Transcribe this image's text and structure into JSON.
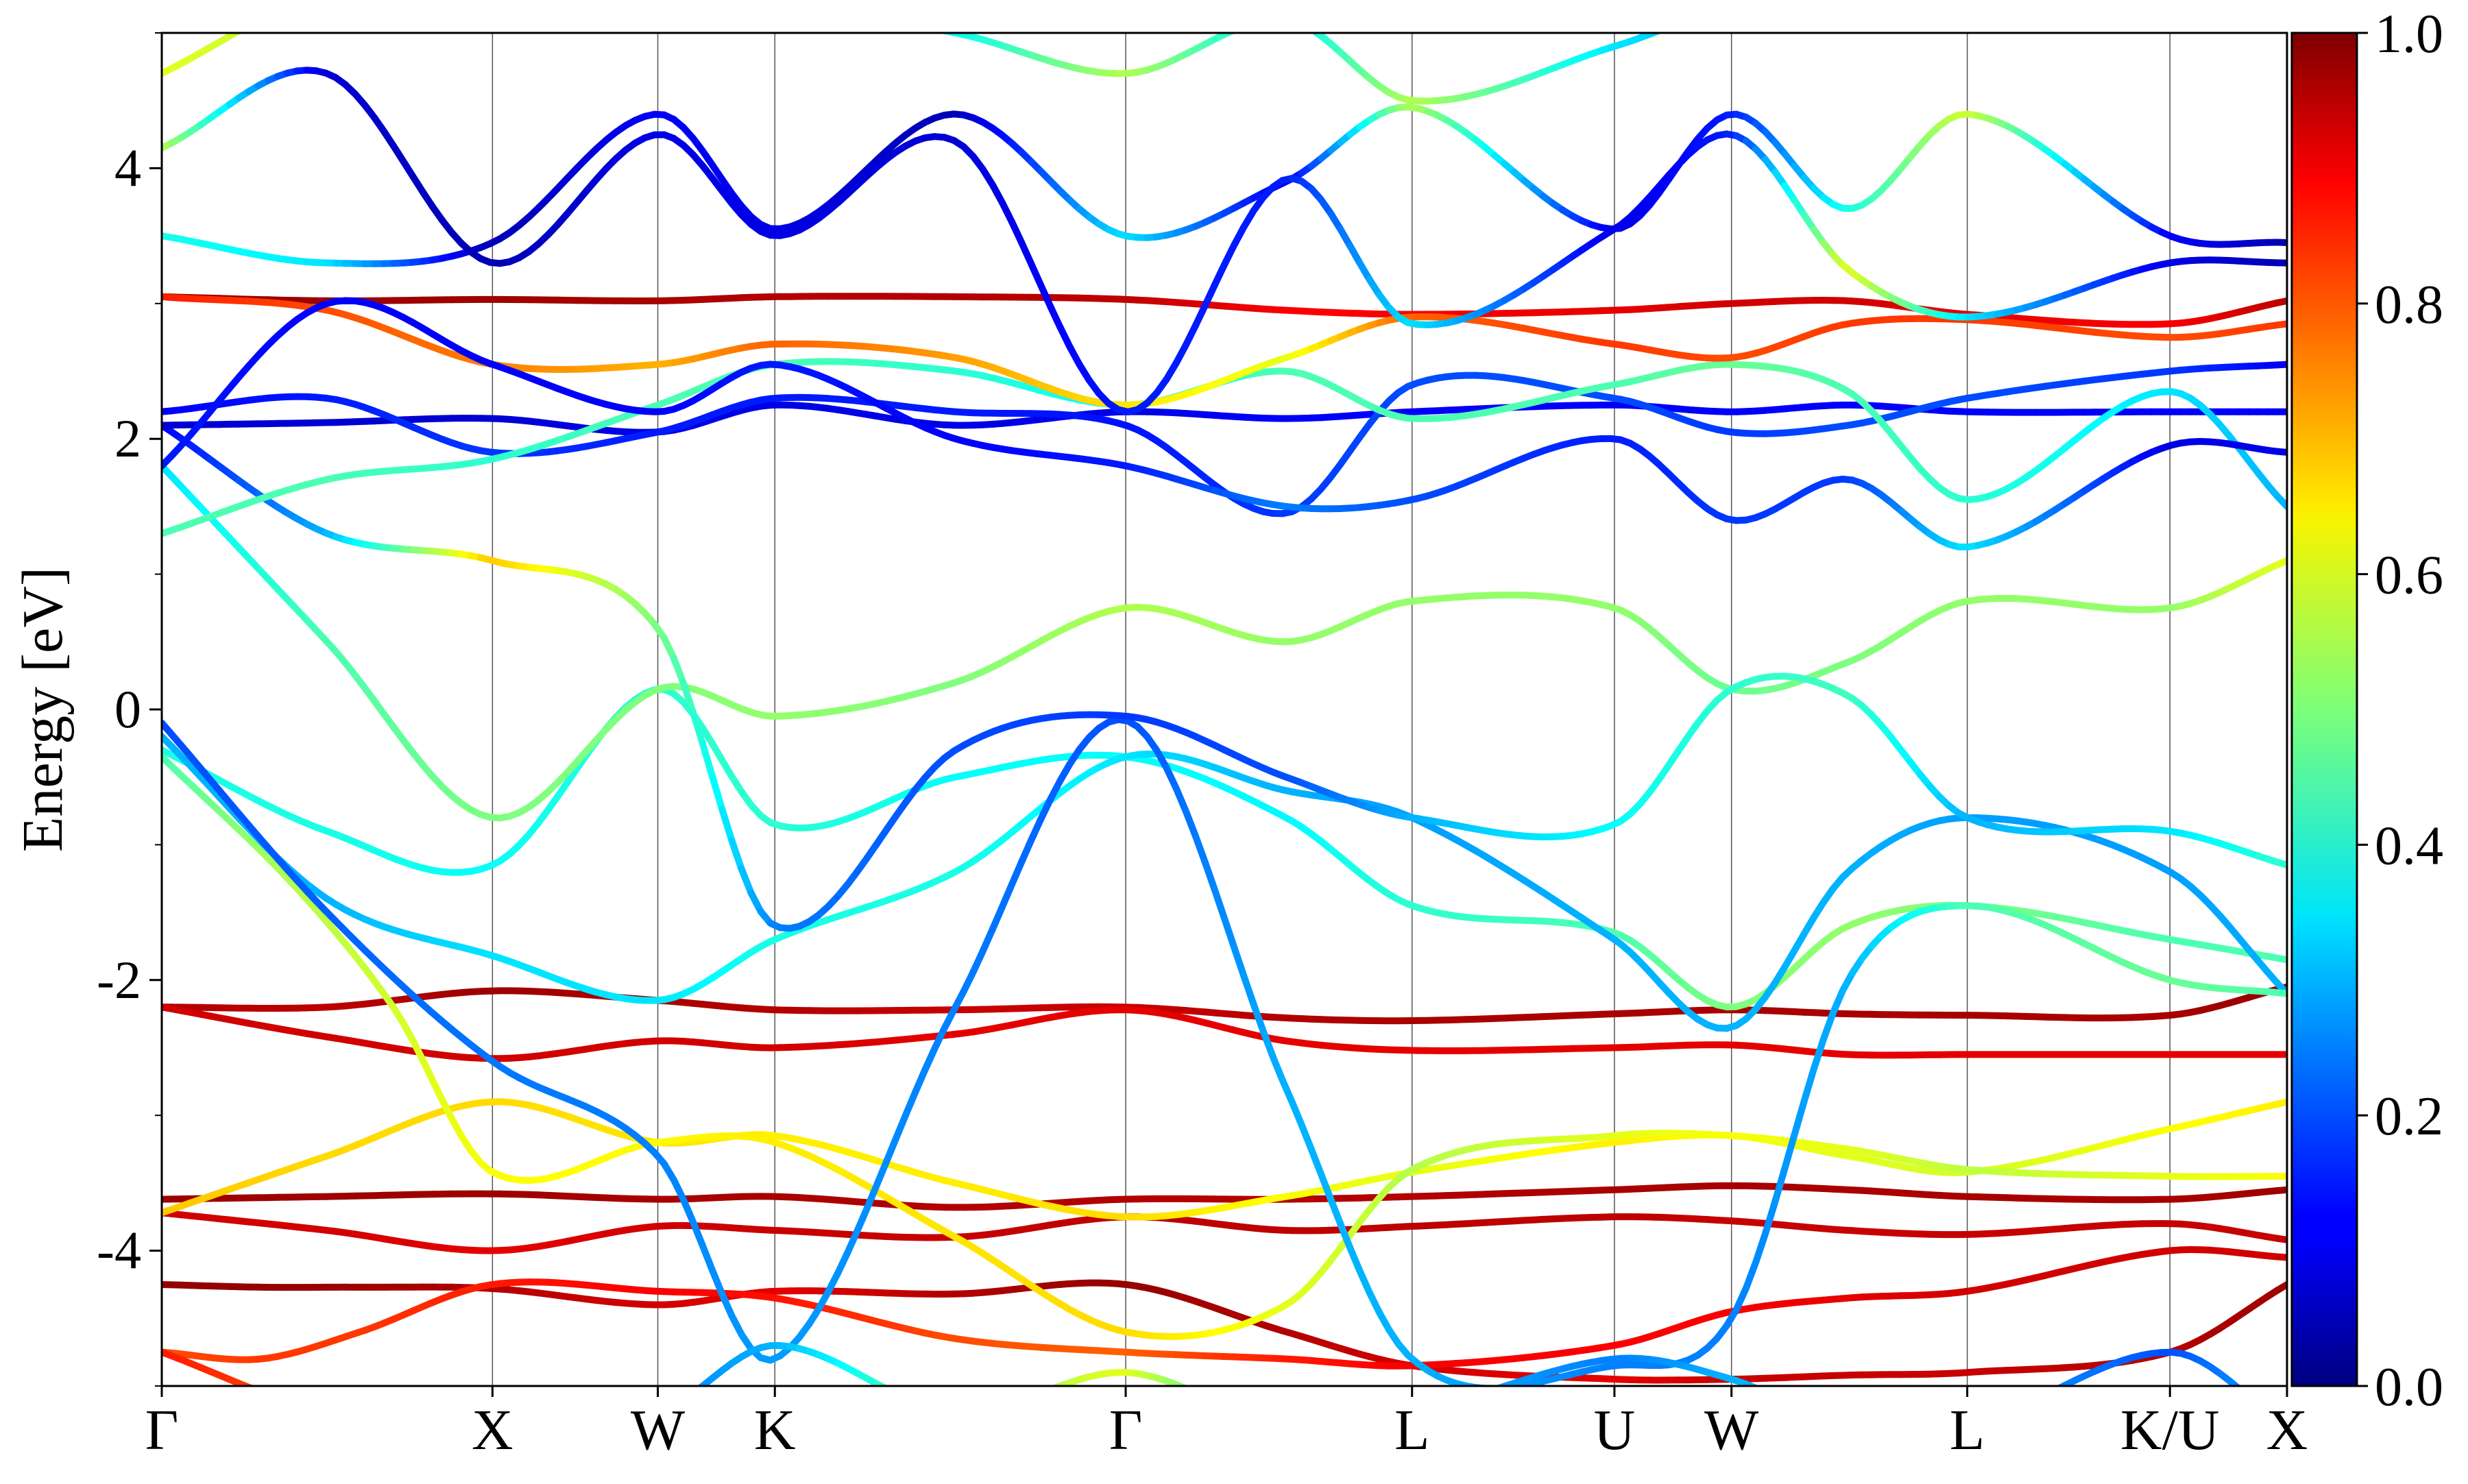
{
  "chart_data": {
    "type": "line",
    "title": "",
    "ylabel": "Energy [eV]",
    "xlabel": "",
    "ylim": [
      -5,
      5
    ],
    "yticks": [
      -4,
      -2,
      0,
      2,
      4
    ],
    "ytick_labels": [
      "-4",
      "-2",
      "0",
      "2",
      "4"
    ],
    "grid": false,
    "kpath": {
      "labels": [
        "Γ",
        "X",
        "W",
        "K",
        "Γ",
        "L",
        "U",
        "W",
        "L",
        "K/U",
        "X"
      ],
      "positions": [
        0,
        1.0,
        1.5,
        1.854,
        2.915,
        3.781,
        4.393,
        4.747,
        5.46,
        6.073,
        6.427
      ]
    },
    "colorbar": {
      "colormap": "jet",
      "range": [
        0.0,
        1.0
      ],
      "ticks": [
        0.0,
        0.2,
        0.4,
        0.6,
        0.8,
        1.0
      ],
      "tick_labels": [
        "0.0",
        "0.2",
        "0.4",
        "0.6",
        "0.8",
        "1.0"
      ]
    },
    "bands": [
      {
        "x": [
          0,
          0.3,
          0.6,
          1.0,
          1.5,
          1.854,
          2.4,
          2.915,
          3.4,
          3.781,
          4.393,
          4.747,
          5.1,
          5.46,
          6.073,
          6.427
        ],
        "y": [
          -4.25,
          -4.27,
          -4.27,
          -4.28,
          -4.4,
          -4.3,
          -4.32,
          -4.25,
          -4.6,
          -4.85,
          -4.95,
          -4.95,
          -4.92,
          -4.9,
          -4.75,
          -4.25
        ],
        "c": [
          0.98,
          0.98,
          0.97,
          0.95,
          0.92,
          0.9,
          0.95,
          0.98,
          0.95,
          0.92,
          0.9,
          0.93,
          0.93,
          0.93,
          0.95,
          0.97
        ]
      },
      {
        "x": [
          0,
          0.3,
          0.6,
          1.0,
          1.5,
          1.854,
          2.4,
          2.915,
          3.4,
          3.781,
          4.393,
          4.747,
          5.1,
          5.46,
          6.073,
          6.427
        ],
        "y": [
          -4.75,
          -4.8,
          -4.6,
          -4.25,
          -4.3,
          -4.35,
          -4.65,
          -4.75,
          -4.8,
          -4.85,
          -4.7,
          -4.45,
          -4.35,
          -4.3,
          -4.0,
          -4.05
        ],
        "c": [
          0.8,
          0.82,
          0.82,
          0.85,
          0.88,
          0.86,
          0.8,
          0.78,
          0.85,
          0.88,
          0.88,
          0.88,
          0.9,
          0.92,
          0.92,
          0.92
        ]
      },
      {
        "x": [
          0,
          0.5,
          1.0,
          1.5,
          1.854,
          2.4,
          2.915,
          3.4,
          3.781,
          4.393,
          4.747,
          5.1,
          5.46,
          6.073,
          6.427
        ],
        "y": [
          -3.62,
          -3.6,
          -3.58,
          -3.62,
          -3.6,
          -3.68,
          -3.62,
          -3.62,
          -3.6,
          -3.55,
          -3.52,
          -3.55,
          -3.6,
          -3.62,
          -3.55
        ],
        "c": [
          0.97,
          0.97,
          0.97,
          0.96,
          0.96,
          0.95,
          0.95,
          0.95,
          0.95,
          0.96,
          0.96,
          0.96,
          0.96,
          0.96,
          0.97
        ]
      },
      {
        "x": [
          0,
          0.5,
          1.0,
          1.5,
          1.854,
          2.4,
          2.915,
          3.4,
          3.781,
          4.393,
          4.747,
          5.1,
          5.46,
          6.073,
          6.427
        ],
        "y": [
          -3.72,
          -3.85,
          -4.0,
          -3.82,
          -3.85,
          -3.9,
          -3.75,
          -3.85,
          -3.82,
          -3.75,
          -3.78,
          -3.85,
          -3.88,
          -3.8,
          -3.92
        ],
        "c": [
          0.92,
          0.92,
          0.9,
          0.92,
          0.93,
          0.93,
          0.94,
          0.94,
          0.94,
          0.94,
          0.93,
          0.93,
          0.93,
          0.93,
          0.93
        ]
      },
      {
        "x": [
          0,
          0.5,
          1.0,
          1.5,
          1.854,
          2.4,
          2.915,
          3.4,
          3.781,
          4.393,
          4.747,
          5.1,
          5.46,
          6.073,
          6.427
        ],
        "y": [
          -3.72,
          -3.3,
          -2.9,
          -3.2,
          -3.15,
          -3.5,
          -3.75,
          -3.6,
          -3.42,
          -3.2,
          -3.15,
          -3.3,
          -3.42,
          -3.1,
          -2.9
        ],
        "c": [
          0.68,
          0.66,
          0.66,
          0.65,
          0.64,
          0.64,
          0.66,
          0.62,
          0.6,
          0.64,
          0.62,
          0.6,
          0.58,
          0.62,
          0.64
        ]
      },
      {
        "x": [
          0,
          0.5,
          1.0,
          1.5,
          1.854,
          2.4,
          2.915,
          3.4,
          3.781,
          4.393,
          4.747,
          5.1,
          5.46,
          6.073,
          6.427
        ],
        "y": [
          -2.2,
          -2.2,
          -2.08,
          -2.15,
          -2.22,
          -2.22,
          -2.2,
          -2.28,
          -2.3,
          -2.25,
          -2.22,
          -2.25,
          -2.26,
          -2.26,
          -2.05
        ],
        "c": [
          0.95,
          0.94,
          0.97,
          0.96,
          0.95,
          0.93,
          0.93,
          0.95,
          0.96,
          0.96,
          0.96,
          0.96,
          0.96,
          0.96,
          0.98
        ]
      },
      {
        "x": [
          0,
          0.5,
          1.0,
          1.5,
          1.854,
          2.4,
          2.915,
          3.4,
          3.781,
          4.393,
          4.747,
          5.1,
          5.46,
          6.073,
          6.427
        ],
        "y": [
          -2.2,
          -2.42,
          -2.58,
          -2.45,
          -2.5,
          -2.4,
          -2.22,
          -2.45,
          -2.52,
          -2.5,
          -2.48,
          -2.55,
          -2.55,
          -2.55,
          -2.55
        ],
        "c": [
          0.92,
          0.92,
          0.92,
          0.92,
          0.92,
          0.9,
          0.9,
          0.9,
          0.9,
          0.9,
          0.9,
          0.9,
          0.9,
          0.9,
          0.9
        ]
      },
      {
        "x": [
          0,
          0.4,
          0.7,
          1.0,
          1.5,
          1.854,
          2.4,
          2.915,
          3.4,
          3.781,
          4.393,
          4.747,
          5.1,
          5.46,
          6.073,
          6.427
        ],
        "y": [
          -0.35,
          -1.3,
          -2.2,
          -3.42,
          -3.2,
          -3.2,
          -3.9,
          -4.6,
          -4.4,
          -3.4,
          -3.15,
          -3.15,
          -3.25,
          -3.4,
          -3.45,
          -3.45
        ],
        "c": [
          0.45,
          0.55,
          0.58,
          0.62,
          0.63,
          0.64,
          0.65,
          0.66,
          0.6,
          0.55,
          0.6,
          0.62,
          0.6,
          0.56,
          0.6,
          0.62
        ]
      },
      {
        "x": [
          0,
          0.5,
          1.0,
          1.5,
          1.854,
          2.4,
          2.915,
          3.4,
          3.781,
          4.393,
          4.747,
          5.1,
          5.46,
          6.073,
          6.427
        ],
        "y": [
          -0.3,
          -0.9,
          -1.15,
          0.15,
          -0.85,
          -0.5,
          -0.35,
          -0.8,
          -1.45,
          -1.65,
          -2.2,
          -1.6,
          -1.45,
          -1.7,
          -1.85
        ],
        "c": [
          0.4,
          0.4,
          0.38,
          0.42,
          0.42,
          0.38,
          0.38,
          0.37,
          0.42,
          0.45,
          0.5,
          0.52,
          0.5,
          0.45,
          0.45
        ]
      },
      {
        "x": [
          0,
          0.5,
          1.0,
          1.5,
          1.854,
          2.4,
          2.915,
          3.4,
          3.781,
          4.393,
          4.747,
          5.1,
          5.46,
          6.073,
          6.427
        ],
        "y": [
          -0.2,
          -1.4,
          -1.82,
          -2.15,
          -1.7,
          -1.2,
          -0.35,
          -0.6,
          -0.8,
          -1.7,
          -2.35,
          -1.2,
          -0.8,
          -1.2,
          -2.1
        ],
        "c": [
          0.3,
          0.3,
          0.35,
          0.35,
          0.4,
          0.4,
          0.35,
          0.3,
          0.28,
          0.3,
          0.3,
          0.3,
          0.28,
          0.28,
          0.3
        ]
      },
      {
        "x": [
          0,
          0.5,
          1.0,
          1.5,
          1.854,
          2.4,
          2.915,
          3.4,
          3.781,
          4.393,
          4.747,
          5.1,
          5.46,
          6.073,
          6.427
        ],
        "y": [
          -0.1,
          -1.5,
          -2.6,
          -3.3,
          -4.8,
          -2.2,
          -0.08,
          -2.8,
          -4.8,
          -4.85,
          -4.5,
          -2.0,
          -1.45,
          -2.0,
          -2.1
        ],
        "c": [
          0.2,
          0.22,
          0.24,
          0.25,
          0.28,
          0.25,
          0.2,
          0.3,
          0.3,
          0.25,
          0.25,
          0.3,
          0.45,
          0.48,
          0.45
        ]
      },
      {
        "x": [
          0,
          0.5,
          1.0,
          1.5,
          1.854,
          2.4,
          2.915,
          3.4,
          3.781,
          4.393,
          4.747,
          5.1,
          5.46,
          6.073,
          6.427
        ],
        "y": [
          1.8,
          0.5,
          -0.8,
          0.15,
          -0.05,
          0.2,
          0.75,
          0.5,
          0.8,
          0.75,
          0.15,
          0.35,
          0.8,
          0.75,
          1.1
        ],
        "c": [
          0.35,
          0.45,
          0.5,
          0.5,
          0.52,
          0.5,
          0.55,
          0.52,
          0.52,
          0.52,
          0.48,
          0.5,
          0.52,
          0.52,
          0.6
        ]
      },
      {
        "x": [
          0,
          0.5,
          1.0,
          1.5,
          1.854,
          2.4,
          2.915,
          3.4,
          3.781,
          4.393,
          4.747,
          5.1,
          5.46,
          6.073,
          6.427
        ],
        "y": [
          2.1,
          1.3,
          1.1,
          0.6,
          -1.6,
          -0.3,
          -0.05,
          -0.5,
          -0.8,
          -0.85,
          0.15,
          0.1,
          -0.8,
          -0.9,
          -1.15
        ],
        "c": [
          0.12,
          0.3,
          0.68,
          0.5,
          0.25,
          0.2,
          0.18,
          0.2,
          0.3,
          0.38,
          0.42,
          0.44,
          0.3,
          0.35,
          0.42
        ]
      },
      {
        "x": [
          0,
          0.5,
          1.0,
          1.5,
          1.854,
          2.4,
          2.915,
          3.4,
          3.781,
          4.393,
          4.747,
          5.1,
          5.46,
          6.073,
          6.427
        ],
        "y": [
          2.1,
          2.12,
          2.15,
          2.05,
          2.25,
          2.1,
          2.2,
          2.15,
          2.2,
          2.25,
          2.2,
          2.25,
          2.2,
          2.2,
          2.2
        ],
        "c": [
          0.08,
          0.08,
          0.08,
          0.1,
          0.1,
          0.1,
          0.1,
          0.12,
          0.12,
          0.12,
          0.12,
          0.12,
          0.12,
          0.12,
          0.12
        ]
      },
      {
        "x": [
          0,
          0.5,
          1.0,
          1.5,
          1.854,
          2.4,
          2.915,
          3.4,
          3.781,
          4.393,
          4.747,
          5.1,
          5.46,
          6.073,
          6.427
        ],
        "y": [
          2.2,
          2.3,
          1.9,
          2.05,
          2.3,
          2.2,
          2.1,
          1.45,
          2.4,
          2.3,
          2.05,
          2.1,
          2.3,
          2.5,
          2.55
        ],
        "c": [
          0.12,
          0.15,
          0.18,
          0.15,
          0.15,
          0.15,
          0.14,
          0.18,
          0.2,
          0.2,
          0.18,
          0.2,
          0.2,
          0.18,
          0.12
        ]
      },
      {
        "x": [
          0,
          0.5,
          1.0,
          1.5,
          1.854,
          2.4,
          2.915,
          3.4,
          3.781,
          4.393,
          4.747,
          5.1,
          5.46,
          6.073,
          6.427
        ],
        "y": [
          1.3,
          1.7,
          1.85,
          2.25,
          2.55,
          2.5,
          2.25,
          2.5,
          2.15,
          2.4,
          2.55,
          2.35,
          1.55,
          2.35,
          1.5
        ],
        "c": [
          0.45,
          0.45,
          0.42,
          0.45,
          0.45,
          0.42,
          0.38,
          0.45,
          0.45,
          0.45,
          0.48,
          0.45,
          0.42,
          0.35,
          0.3
        ]
      },
      {
        "x": [
          0,
          0.5,
          1.0,
          1.5,
          1.854,
          2.4,
          2.915,
          3.4,
          3.781,
          4.393,
          4.747,
          5.1,
          5.46,
          6.073,
          6.427
        ],
        "y": [
          3.05,
          3.02,
          3.03,
          3.02,
          3.05,
          3.05,
          3.03,
          2.95,
          2.92,
          2.95,
          3.0,
          3.02,
          2.92,
          2.85,
          3.02
        ],
        "c": [
          0.98,
          0.97,
          0.97,
          0.96,
          0.95,
          0.95,
          0.94,
          0.88,
          0.88,
          0.9,
          0.92,
          0.92,
          0.9,
          0.88,
          0.94
        ]
      },
      {
        "x": [
          0,
          0.5,
          1.0,
          1.5,
          1.854,
          2.4,
          2.915,
          3.4,
          3.781,
          4.393,
          4.747,
          5.1,
          5.46,
          6.073,
          6.427
        ],
        "y": [
          3.05,
          2.95,
          2.55,
          2.55,
          2.7,
          2.6,
          2.25,
          2.6,
          2.9,
          2.7,
          2.6,
          2.85,
          2.88,
          2.75,
          2.85
        ],
        "c": [
          0.85,
          0.8,
          0.75,
          0.7,
          0.78,
          0.72,
          0.65,
          0.6,
          0.78,
          0.82,
          0.8,
          0.82,
          0.82,
          0.8,
          0.82
        ]
      },
      {
        "x": [
          0,
          0.5,
          1.0,
          1.5,
          1.854,
          2.4,
          2.915,
          3.4,
          3.781,
          4.393,
          4.747,
          5.1,
          5.46,
          6.073,
          6.427
        ],
        "y": [
          3.5,
          3.3,
          3.45,
          4.4,
          3.55,
          4.4,
          3.5,
          3.9,
          4.45,
          3.55,
          4.4,
          3.7,
          4.4,
          3.5,
          3.45
        ],
        "c": [
          0.4,
          0.35,
          0.05,
          0.12,
          0.1,
          0.05,
          0.35,
          0.1,
          0.55,
          0.1,
          0.15,
          0.4,
          0.58,
          0.12,
          0.05
        ]
      },
      {
        "x": [
          0,
          0.5,
          1.0,
          1.5,
          1.854,
          2.4,
          2.915,
          3.4,
          3.781,
          4.393,
          4.747,
          5.1,
          5.46,
          6.073,
          6.427
        ],
        "y": [
          4.15,
          4.7,
          3.3,
          4.25,
          3.5,
          4.2,
          2.2,
          3.92,
          2.85,
          3.55,
          4.25,
          3.25,
          2.9,
          3.3,
          3.3
        ],
        "c": [
          0.55,
          0.08,
          0.05,
          0.1,
          0.1,
          0.08,
          0.15,
          0.15,
          0.35,
          0.1,
          0.15,
          0.6,
          0.35,
          0.1,
          0.05
        ]
      },
      {
        "x": [
          0,
          0.5,
          1.0,
          1.5,
          1.854,
          2.4,
          2.915,
          3.4,
          3.781,
          4.393,
          4.747,
          5.1,
          5.46,
          6.073,
          6.427
        ],
        "y": [
          1.8,
          3.0,
          2.55,
          2.2,
          2.55,
          2.0,
          1.8,
          1.5,
          1.55,
          2.0,
          1.4,
          1.7,
          1.2,
          1.95,
          1.9
        ],
        "c": [
          0.15,
          0.12,
          0.12,
          0.12,
          0.15,
          0.12,
          0.15,
          0.25,
          0.2,
          0.15,
          0.18,
          0.18,
          0.35,
          0.1,
          0.1
        ]
      },
      {
        "x": [
          0,
          0.5,
          1.0,
          1.5,
          1.854,
          2.4,
          2.915,
          3.4,
          3.781,
          4.393,
          4.747,
          5.1,
          5.46,
          6.073,
          6.427
        ],
        "y": [
          4.7,
          5.3,
          5.3,
          5.2,
          5.2,
          5.0,
          4.7,
          5.1,
          4.5,
          4.9,
          5.2,
          5.3,
          5.2,
          5.3,
          5.3
        ],
        "c": [
          0.6,
          0.55,
          0.45,
          0.4,
          0.35,
          0.38,
          0.55,
          0.35,
          0.55,
          0.35,
          0.3,
          0.3,
          0.12,
          0.3,
          0.3
        ]
      },
      {
        "x": [
          0,
          0.5,
          1.0,
          1.5,
          1.854,
          2.4,
          2.915,
          3.4,
          3.781,
          4.393,
          4.747,
          5.1,
          5.46,
          6.073,
          6.427
        ],
        "y": [
          -4.75,
          -5.2,
          -5.3,
          -5.2,
          -4.7,
          -5.2,
          -4.9,
          -5.3,
          -5.2,
          -4.8,
          -4.95,
          -5.3,
          -5.3,
          -4.75,
          -5.3
        ],
        "c": [
          0.85,
          0.8,
          0.4,
          0.25,
          0.3,
          0.5,
          0.6,
          0.35,
          0.3,
          0.25,
          0.3,
          0.3,
          0.3,
          0.2,
          0.3
        ]
      }
    ]
  }
}
